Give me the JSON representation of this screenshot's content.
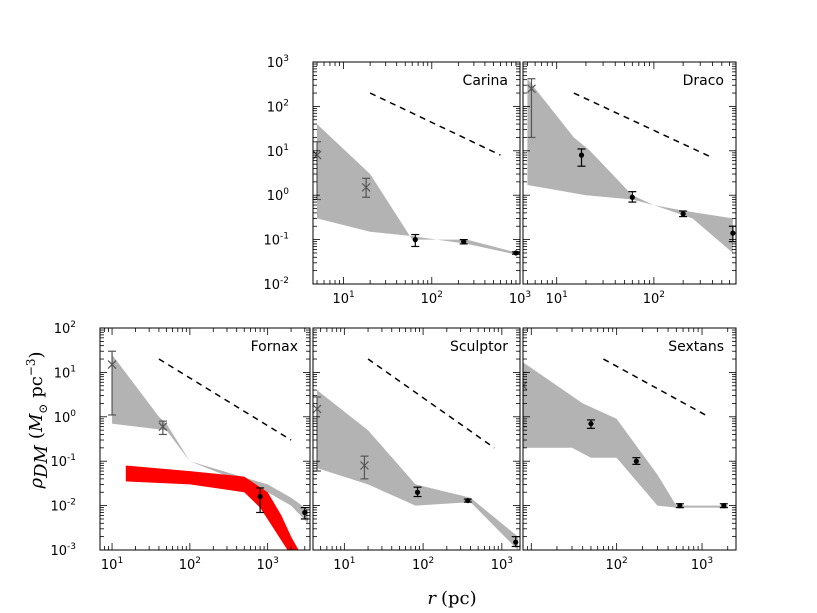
{
  "figure": {
    "xlabel_var": "r",
    "xlabel_unit": "(pc)",
    "ylabel_var": "ρ",
    "ylabel_sub": "DM",
    "ylabel_unit_open": "(",
    "ylabel_unit_M": "M",
    "ylabel_unit_sun": "⊙",
    "ylabel_unit_pc": " pc",
    "ylabel_unit_exp": "−3",
    "ylabel_unit_close": ")"
  },
  "colors": {
    "band": "#b3b3b3",
    "highlight": "#ff0000",
    "cross": "#555555",
    "point": "#000000",
    "line": "#000000"
  },
  "chart_data": [
    {
      "type": "area",
      "title": "Carina",
      "xscale": "log",
      "yscale": "log",
      "xlim": [
        4.5,
        1000
      ],
      "ylim": [
        0.01,
        1000
      ],
      "xticks": [
        {
          "value": 10,
          "base": "10",
          "exp": "1"
        },
        {
          "value": 100,
          "base": "10",
          "exp": "2"
        },
        {
          "value": 1000,
          "base": "10",
          "exp": "3"
        }
      ],
      "yticks": [
        {
          "value": 0.01,
          "base": "10",
          "exp": "-2"
        },
        {
          "value": 0.1,
          "base": "10",
          "exp": "-1"
        },
        {
          "value": 1,
          "base": "10",
          "exp": "0"
        },
        {
          "value": 10,
          "base": "10",
          "exp": "1"
        },
        {
          "value": 100,
          "base": "10",
          "exp": "2"
        },
        {
          "value": 1000,
          "base": "10",
          "exp": "3"
        }
      ],
      "band_upper": [
        [
          5,
          40
        ],
        [
          20,
          3
        ],
        [
          60,
          0.1
        ],
        [
          250,
          0.1
        ],
        [
          950,
          0.05
        ]
      ],
      "band_lower": [
        [
          950,
          0.045
        ],
        [
          250,
          0.08
        ],
        [
          60,
          0.12
        ],
        [
          20,
          0.15
        ],
        [
          5,
          0.3
        ]
      ],
      "band_red_upper": [],
      "band_red_lower": [],
      "crosses": [
        {
          "x": 5,
          "y": 8,
          "lo": 0.8,
          "hi": 16
        },
        {
          "x": 18,
          "y": 1.5,
          "lo": 0.9,
          "hi": 2.4
        }
      ],
      "points": [
        {
          "x": 65,
          "y": 0.1,
          "lo": 0.07,
          "hi": 0.13
        },
        {
          "x": 230,
          "y": 0.09,
          "lo": 0.08,
          "hi": 0.1
        },
        {
          "x": 900,
          "y": 0.05,
          "lo": 0.047,
          "hi": 0.053
        }
      ],
      "dashed_line": [
        [
          20,
          200
        ],
        [
          600,
          8
        ]
      ]
    },
    {
      "type": "area",
      "title": "Draco",
      "xscale": "log",
      "yscale": "log",
      "xlim": [
        4.5,
        700
      ],
      "ylim": [
        0.01,
        1000
      ],
      "xticks": [
        {
          "value": 10,
          "base": "10",
          "exp": "1"
        },
        {
          "value": 100,
          "base": "10",
          "exp": "2"
        }
      ],
      "yticks": [],
      "band_upper": [
        [
          5,
          420
        ],
        [
          15,
          20
        ],
        [
          22,
          10
        ],
        [
          60,
          1
        ],
        [
          100,
          0.6
        ],
        [
          200,
          0.45
        ],
        [
          650,
          0.3
        ]
      ],
      "band_lower": [
        [
          650,
          0.05
        ],
        [
          250,
          0.3
        ],
        [
          100,
          0.6
        ],
        [
          60,
          0.8
        ],
        [
          20,
          1
        ],
        [
          5,
          1.7
        ]
      ],
      "band_red_upper": [],
      "band_red_lower": [],
      "crosses": [
        {
          "x": 5.5,
          "y": 250,
          "lo": 20,
          "hi": 420
        }
      ],
      "points": [
        {
          "x": 18,
          "y": 8,
          "lo": 4.5,
          "hi": 11
        },
        {
          "x": 60,
          "y": 0.9,
          "lo": 0.7,
          "hi": 1.2
        },
        {
          "x": 200,
          "y": 0.38,
          "lo": 0.33,
          "hi": 0.44
        },
        {
          "x": 650,
          "y": 0.14,
          "lo": 0.09,
          "hi": 0.2
        }
      ],
      "dashed_line": [
        [
          15,
          200
        ],
        [
          400,
          7
        ]
      ]
    },
    {
      "type": "area",
      "title": "Fornax",
      "xscale": "log",
      "yscale": "log",
      "xlim": [
        7,
        3500
      ],
      "ylim": [
        0.001,
        100
      ],
      "xticks": [
        {
          "value": 10,
          "base": "10",
          "exp": "1"
        },
        {
          "value": 100,
          "base": "10",
          "exp": "2"
        },
        {
          "value": 1000,
          "base": "10",
          "exp": "3"
        }
      ],
      "yticks": [
        {
          "value": 0.001,
          "base": "10",
          "exp": "-3"
        },
        {
          "value": 0.01,
          "base": "10",
          "exp": "-2"
        },
        {
          "value": 0.1,
          "base": "10",
          "exp": "-1"
        },
        {
          "value": 1,
          "base": "10",
          "exp": "0"
        },
        {
          "value": 10,
          "base": "10",
          "exp": "1"
        },
        {
          "value": 100,
          "base": "10",
          "exp": "2"
        }
      ],
      "band_upper": [
        [
          10,
          25
        ],
        [
          40,
          1
        ],
        [
          50,
          0.7
        ],
        [
          100,
          0.1
        ],
        [
          1000,
          0.03
        ],
        [
          2000,
          0.015
        ],
        [
          3300,
          0.008
        ]
      ],
      "band_lower": [
        [
          3300,
          0.004
        ],
        [
          2000,
          0.01
        ],
        [
          1000,
          0.02
        ],
        [
          100,
          0.1
        ],
        [
          50,
          0.5
        ],
        [
          10,
          0.7
        ]
      ],
      "band_red_upper": [
        [
          15,
          0.08
        ],
        [
          100,
          0.06
        ],
        [
          500,
          0.045
        ],
        [
          1000,
          0.02
        ],
        [
          1500,
          0.006
        ],
        [
          2000,
          0.002
        ],
        [
          2500,
          0.001
        ]
      ],
      "band_red_lower": [
        [
          1800,
          0.001
        ],
        [
          1200,
          0.003
        ],
        [
          800,
          0.009
        ],
        [
          500,
          0.02
        ],
        [
          100,
          0.03
        ],
        [
          15,
          0.035
        ]
      ],
      "crosses": [
        {
          "x": 10,
          "y": 15,
          "lo": 1.1,
          "hi": 30
        },
        {
          "x": 45,
          "y": 0.6,
          "lo": 0.4,
          "hi": 0.8
        }
      ],
      "points": [
        {
          "x": 800,
          "y": 0.016,
          "lo": 0.007,
          "hi": 0.025
        },
        {
          "x": 3000,
          "y": 0.007,
          "lo": 0.005,
          "hi": 0.009
        }
      ],
      "dashed_line": [
        [
          40,
          20
        ],
        [
          2000,
          0.3
        ]
      ]
    },
    {
      "type": "area",
      "title": "Sculptor",
      "xscale": "log",
      "yscale": "log",
      "xlim": [
        4,
        1700
      ],
      "ylim": [
        0.001,
        100
      ],
      "xticks": [
        {
          "value": 10,
          "base": "10",
          "exp": "1"
        },
        {
          "value": 100,
          "base": "10",
          "exp": "2"
        },
        {
          "value": 1000,
          "base": "10",
          "exp": "3"
        }
      ],
      "yticks": [],
      "band_upper": [
        [
          4.5,
          4
        ],
        [
          20,
          0.5
        ],
        [
          80,
          0.03
        ],
        [
          400,
          0.015
        ],
        [
          1600,
          0.002
        ]
      ],
      "band_lower": [
        [
          1600,
          0.001
        ],
        [
          400,
          0.012
        ],
        [
          80,
          0.01
        ],
        [
          20,
          0.03
        ],
        [
          4.5,
          0.07
        ]
      ],
      "band_red_upper": [],
      "band_red_lower": [],
      "crosses": [
        {
          "x": 4.5,
          "y": 1.5,
          "lo": 0.06,
          "hi": 2.8
        },
        {
          "x": 18,
          "y": 0.08,
          "lo": 0.04,
          "hi": 0.13
        }
      ],
      "points": [
        {
          "x": 85,
          "y": 0.02,
          "lo": 0.016,
          "hi": 0.026
        },
        {
          "x": 370,
          "y": 0.013,
          "lo": 0.012,
          "hi": 0.014
        },
        {
          "x": 1500,
          "y": 0.0015,
          "lo": 0.0012,
          "hi": 0.002
        }
      ],
      "dashed_line": [
        [
          20,
          20
        ],
        [
          800,
          0.2
        ]
      ]
    },
    {
      "type": "area",
      "title": "Sextans",
      "xscale": "log",
      "yscale": "log",
      "xlim": [
        8,
        2500
      ],
      "ylim": [
        0.001,
        100
      ],
      "xticks": [
        {
          "value": 100,
          "base": "10",
          "exp": "2"
        },
        {
          "value": 1000,
          "base": "10",
          "exp": "3"
        }
      ],
      "yticks": [],
      "band_upper": [
        [
          8,
          17
        ],
        [
          40,
          2
        ],
        [
          100,
          0.9
        ],
        [
          300,
          0.05
        ],
        [
          500,
          0.01
        ],
        [
          2000,
          0.01
        ]
      ],
      "band_lower": [
        [
          2000,
          0.009
        ],
        [
          500,
          0.009
        ],
        [
          300,
          0.01
        ],
        [
          100,
          0.12
        ],
        [
          50,
          0.12
        ],
        [
          30,
          0.2
        ],
        [
          8,
          0.2
        ]
      ],
      "band_red_upper": [],
      "band_red_lower": [],
      "crosses": [
        {
          "x": 8,
          "y": 5,
          "lo": 0.6,
          "hi": 10
        }
      ],
      "points": [
        {
          "x": 50,
          "y": 0.7,
          "lo": 0.55,
          "hi": 0.85
        },
        {
          "x": 170,
          "y": 0.1,
          "lo": 0.085,
          "hi": 0.12
        },
        {
          "x": 550,
          "y": 0.01,
          "lo": 0.009,
          "hi": 0.011
        },
        {
          "x": 1800,
          "y": 0.01,
          "lo": 0.009,
          "hi": 0.011
        }
      ],
      "dashed_line": [
        [
          70,
          20
        ],
        [
          1200,
          1
        ]
      ]
    }
  ]
}
